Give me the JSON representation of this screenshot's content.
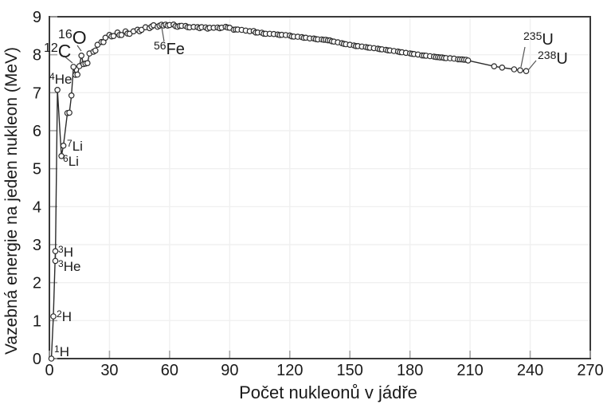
{
  "chart_data": {
    "type": "line",
    "title": "",
    "xlabel": "Počet nukleonů v jádře",
    "ylabel": "Vazebná energie na jeden nukleon (MeV)",
    "xlim": [
      0,
      270
    ],
    "ylim": [
      0,
      9
    ],
    "xticks": [
      0,
      30,
      60,
      90,
      120,
      150,
      180,
      210,
      240,
      270
    ],
    "yticks": [
      0,
      1,
      2,
      3,
      4,
      5,
      6,
      7,
      8,
      9
    ],
    "grid": true,
    "legend": false,
    "line_color": "#2b2b2b",
    "marker": {
      "shape": "circle",
      "fill": "#ffffff",
      "stroke": "#2b2b2b",
      "radius": 3.2
    },
    "frame_color": "#3a3a3a",
    "tick_color": "#a6a6a6",
    "grid_color": "#f0f0f0",
    "points": [
      [
        1,
        0
      ],
      [
        2,
        1.112
      ],
      [
        3,
        2.827
      ],
      [
        3,
        2.573
      ],
      [
        4,
        7.074
      ],
      [
        6,
        5.332
      ],
      [
        7,
        5.606
      ],
      [
        9,
        6.463
      ],
      [
        10,
        6.475
      ],
      [
        11,
        6.928
      ],
      [
        12,
        7.68
      ],
      [
        13,
        7.47
      ],
      [
        14,
        7.476
      ],
      [
        15,
        7.699
      ],
      [
        16,
        7.976
      ],
      [
        17,
        7.751
      ],
      [
        18,
        7.767
      ],
      [
        19,
        7.779
      ],
      [
        20,
        8.032
      ],
      [
        22,
        8.08
      ],
      [
        23,
        8.111
      ],
      [
        24,
        8.261
      ],
      [
        26,
        8.334
      ],
      [
        27,
        8.332
      ],
      [
        28,
        8.448
      ],
      [
        30,
        8.521
      ],
      [
        31,
        8.481
      ],
      [
        32,
        8.493
      ],
      [
        34,
        8.584
      ],
      [
        35,
        8.52
      ],
      [
        36,
        8.52
      ],
      [
        38,
        8.614
      ],
      [
        39,
        8.557
      ],
      [
        40,
        8.551
      ],
      [
        42,
        8.617
      ],
      [
        44,
        8.658
      ],
      [
        45,
        8.619
      ],
      [
        46,
        8.656
      ],
      [
        48,
        8.723
      ],
      [
        50,
        8.7
      ],
      [
        51,
        8.742
      ],
      [
        52,
        8.776
      ],
      [
        54,
        8.736
      ],
      [
        55,
        8.765
      ],
      [
        56,
        8.79
      ],
      [
        57,
        8.77
      ],
      [
        58,
        8.792
      ],
      [
        59,
        8.768
      ],
      [
        60,
        8.781
      ],
      [
        62,
        8.795
      ],
      [
        63,
        8.752
      ],
      [
        64,
        8.736
      ],
      [
        65,
        8.757
      ],
      [
        66,
        8.76
      ],
      [
        68,
        8.756
      ],
      [
        69,
        8.725
      ],
      [
        70,
        8.722
      ],
      [
        72,
        8.732
      ],
      [
        74,
        8.725
      ],
      [
        75,
        8.701
      ],
      [
        76,
        8.725
      ],
      [
        78,
        8.718
      ],
      [
        79,
        8.688
      ],
      [
        80,
        8.711
      ],
      [
        82,
        8.711
      ],
      [
        84,
        8.717
      ],
      [
        85,
        8.697
      ],
      [
        86,
        8.712
      ],
      [
        88,
        8.733
      ],
      [
        89,
        8.714
      ],
      [
        90,
        8.71
      ],
      [
        92,
        8.658
      ],
      [
        93,
        8.664
      ],
      [
        94,
        8.662
      ],
      [
        96,
        8.654
      ],
      [
        98,
        8.635
      ],
      [
        100,
        8.619
      ],
      [
        102,
        8.624
      ],
      [
        103,
        8.584
      ],
      [
        104,
        8.585
      ],
      [
        106,
        8.58
      ],
      [
        107,
        8.554
      ],
      [
        108,
        8.55
      ],
      [
        110,
        8.551
      ],
      [
        112,
        8.545
      ],
      [
        114,
        8.532
      ],
      [
        115,
        8.517
      ],
      [
        116,
        8.523
      ],
      [
        118,
        8.517
      ],
      [
        120,
        8.505
      ],
      [
        121,
        8.482
      ],
      [
        122,
        8.478
      ],
      [
        124,
        8.473
      ],
      [
        126,
        8.463
      ],
      [
        127,
        8.445
      ],
      [
        128,
        8.449
      ],
      [
        130,
        8.43
      ],
      [
        132,
        8.428
      ],
      [
        133,
        8.41
      ],
      [
        134,
        8.404
      ],
      [
        136,
        8.403
      ],
      [
        137,
        8.392
      ],
      [
        138,
        8.393
      ],
      [
        139,
        8.378
      ],
      [
        140,
        8.376
      ],
      [
        141,
        8.354
      ],
      [
        142,
        8.346
      ],
      [
        144,
        8.327
      ],
      [
        146,
        8.304
      ],
      [
        147,
        8.284
      ],
      [
        148,
        8.277
      ],
      [
        150,
        8.262
      ],
      [
        152,
        8.244
      ],
      [
        153,
        8.229
      ],
      [
        154,
        8.227
      ],
      [
        156,
        8.215
      ],
      [
        158,
        8.202
      ],
      [
        159,
        8.189
      ],
      [
        160,
        8.184
      ],
      [
        162,
        8.173
      ],
      [
        164,
        8.159
      ],
      [
        165,
        8.147
      ],
      [
        166,
        8.142
      ],
      [
        168,
        8.13
      ],
      [
        169,
        8.114
      ],
      [
        170,
        8.112
      ],
      [
        172,
        8.097
      ],
      [
        174,
        8.084
      ],
      [
        175,
        8.069
      ],
      [
        176,
        8.064
      ],
      [
        178,
        8.049
      ],
      [
        180,
        8.035
      ],
      [
        181,
        8.023
      ],
      [
        182,
        8.018
      ],
      [
        184,
        8.005
      ],
      [
        186,
        7.981
      ],
      [
        187,
        7.978
      ],
      [
        188,
        7.974
      ],
      [
        190,
        7.962
      ],
      [
        192,
        7.949
      ],
      [
        193,
        7.938
      ],
      [
        194,
        7.936
      ],
      [
        195,
        7.927
      ],
      [
        196,
        7.927
      ],
      [
        197,
        7.916
      ],
      [
        198,
        7.912
      ],
      [
        200,
        7.906
      ],
      [
        202,
        7.897
      ],
      [
        204,
        7.88
      ],
      [
        205,
        7.878
      ],
      [
        206,
        7.875
      ],
      [
        207,
        7.87
      ],
      [
        208,
        7.867
      ],
      [
        209,
        7.848
      ],
      [
        222,
        7.695
      ],
      [
        226,
        7.662
      ],
      [
        232,
        7.615
      ],
      [
        235,
        7.591
      ],
      [
        238,
        7.57
      ]
    ],
    "isotope_labels": [
      {
        "mass": "1",
        "symbol": "H",
        "lx": 68,
        "ly": 447,
        "fs": 17,
        "leader": null
      },
      {
        "mass": "2",
        "symbol": "H",
        "lx": 71,
        "ly": 403,
        "fs": 17,
        "leader": null
      },
      {
        "mass": "3",
        "symbol": "H",
        "lx": 73,
        "ly": 322,
        "fs": 17,
        "leader": null
      },
      {
        "mass": "3",
        "symbol": "He",
        "lx": 73,
        "ly": 340,
        "fs": 17,
        "leader": null
      },
      {
        "mass": "4",
        "symbol": "He",
        "lx": 62,
        "ly": 105,
        "fs": 17,
        "leader": null
      },
      {
        "mass": "6",
        "symbol": "Li",
        "lx": 79,
        "ly": 208,
        "fs": 17,
        "leader": null
      },
      {
        "mass": "7",
        "symbol": "Li",
        "lx": 84,
        "ly": 189,
        "fs": 17,
        "leader": null
      },
      {
        "mass": "12",
        "symbol": "C",
        "lx": 55,
        "ly": 72,
        "fs": 23,
        "leader": [
          80,
          70,
          91,
          79
        ]
      },
      {
        "mass": "16",
        "symbol": "O",
        "lx": 73,
        "ly": 55,
        "fs": 23,
        "leader": [
          97,
          57,
          102,
          64
        ]
      },
      {
        "mass": "56",
        "symbol": "Fe",
        "lx": 193,
        "ly": 68,
        "fs": 20,
        "leader": [
          206,
          52,
          203,
          34
        ]
      },
      {
        "mass": "235",
        "symbol": "U",
        "lx": 657,
        "ly": 56,
        "fs": 20,
        "leader": [
          659,
          59,
          654,
          84
        ]
      },
      {
        "mass": "238",
        "symbol": "U",
        "lx": 675,
        "ly": 80,
        "fs": 20,
        "leader": [
          673,
          76,
          663,
          88
        ]
      }
    ],
    "tick_font_size": 20,
    "axis_title_font_size": 22
  },
  "colors": {
    "background": "#ffffff",
    "text": "#1a1a1a"
  }
}
